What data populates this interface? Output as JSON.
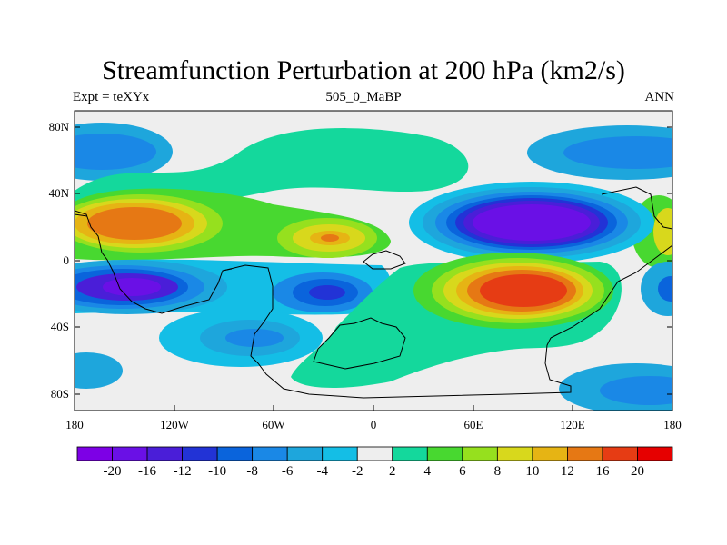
{
  "title": "Streamfunction Perturbation at 200 hPa (km2/s)",
  "left_subtitle": "Expt = teXYx",
  "center_subtitle": "505_0_MaBP",
  "right_subtitle": "ANN",
  "lat_labels": [
    "80N",
    "40N",
    "0",
    "40S",
    "80S"
  ],
  "lon_labels": [
    "180",
    "120W",
    "60W",
    "0",
    "60E",
    "120E",
    "180"
  ],
  "colorbar": {
    "labels": [
      "-20",
      "-16",
      "-12",
      "-10",
      "-8",
      "-6",
      "-4",
      "-2",
      "2",
      "4",
      "6",
      "8",
      "10",
      "12",
      "16",
      "20"
    ],
    "colors": [
      "#7d00e6",
      "#6a10e6",
      "#4a1ed8",
      "#2233d6",
      "#0a64dc",
      "#1a88e6",
      "#1ea6dc",
      "#14bee6",
      "#eeeeee",
      "#14d89c",
      "#48d830",
      "#96e01e",
      "#d8d81c",
      "#e6b414",
      "#e67814",
      "#e63c14",
      "#e60000"
    ]
  }
}
